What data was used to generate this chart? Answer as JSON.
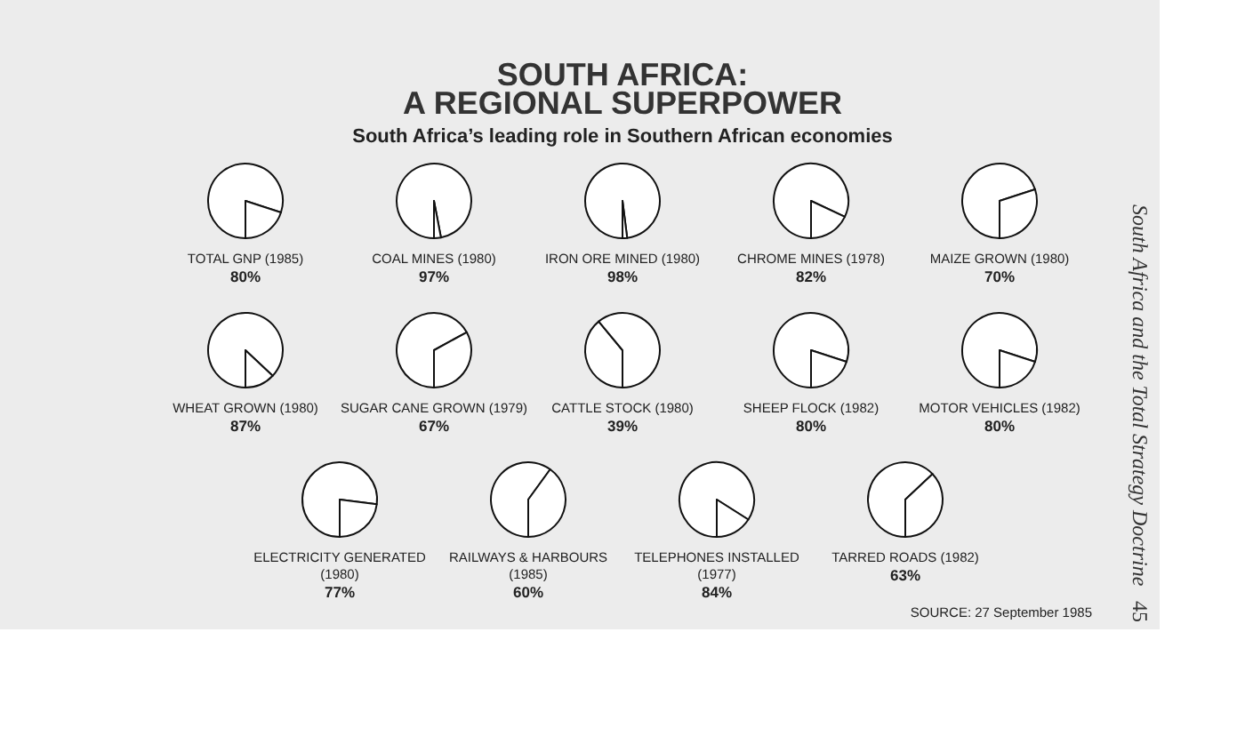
{
  "chart_data": [
    {
      "type": "other",
      "title": "SOUTH AFRICA:\nA REGIONAL SUPERPOWER",
      "subtitle": "South Africa’s leading role in Southern African economies"
    },
    {
      "type": "pie",
      "title": "TOTAL GNP (1985)",
      "categories": [
        null,
        null
      ],
      "values": [
        80,
        20
      ],
      "colors": [
        "#ffffff",
        "#ffffff"
      ],
      "value_labels": [
        "80%",
        null
      ]
    },
    {
      "type": "pie",
      "title": "COAL MINES (1980)",
      "categories": [
        null,
        null
      ],
      "values": [
        97,
        3
      ],
      "colors": [
        "#ffffff",
        "#ffffff"
      ],
      "value_labels": [
        "97%",
        null
      ]
    },
    {
      "type": "pie",
      "title": "IRON ORE MINED (1980)",
      "categories": [
        null,
        null
      ],
      "values": [
        98,
        2
      ],
      "colors": [
        "#ffffff",
        "#ffffff"
      ],
      "value_labels": [
        "98%",
        null
      ]
    },
    {
      "type": "pie",
      "title": "CHROME MINES (1978)",
      "categories": [
        null,
        null
      ],
      "values": [
        82,
        18
      ],
      "colors": [
        "#ffffff",
        "#ffffff"
      ],
      "value_labels": [
        "82%",
        null
      ]
    },
    {
      "type": "pie",
      "title": "MAIZE GROWN (1980)",
      "categories": [
        null,
        null
      ],
      "values": [
        70,
        30
      ],
      "colors": [
        "#ffffff",
        "#ffffff"
      ],
      "value_labels": [
        "70%",
        null
      ]
    },
    {
      "type": "pie",
      "title": "WHEAT GROWN (1980)",
      "categories": [
        null,
        null
      ],
      "values": [
        87,
        13
      ],
      "colors": [
        "#ffffff",
        "#ffffff"
      ],
      "value_labels": [
        "87%",
        null
      ]
    },
    {
      "type": "pie",
      "title": "SUGAR CANE GROWN (1979)",
      "categories": [
        null,
        null
      ],
      "values": [
        67,
        33
      ],
      "colors": [
        "#ffffff",
        "#ffffff"
      ],
      "value_labels": [
        "67%",
        null
      ]
    },
    {
      "type": "pie",
      "title": "CATTLE STOCK (1980)",
      "categories": [
        null,
        null
      ],
      "values": [
        39,
        61
      ],
      "colors": [
        "#ffffff",
        "#ffffff"
      ],
      "value_labels": [
        "39%",
        null
      ]
    },
    {
      "type": "pie",
      "title": "SHEEP FLOCK (1982)",
      "categories": [
        null,
        null
      ],
      "values": [
        80,
        20
      ],
      "colors": [
        "#ffffff",
        "#ffffff"
      ],
      "value_labels": [
        "80%",
        null
      ]
    },
    {
      "type": "pie",
      "title": "MOTOR VEHICLES (1982)",
      "categories": [
        null,
        null
      ],
      "values": [
        80,
        20
      ],
      "colors": [
        "#ffffff",
        "#ffffff"
      ],
      "value_labels": [
        "80%",
        null
      ]
    },
    {
      "type": "pie",
      "title": "ELECTRICITY GENERATED\n(1980)",
      "categories": [
        null,
        null
      ],
      "values": [
        77,
        23
      ],
      "colors": [
        "#ffffff",
        "#ffffff"
      ],
      "value_labels": [
        "77%",
        null
      ]
    },
    {
      "type": "pie",
      "title": "RAILWAYS & HARBOURS\n(1985)",
      "categories": [
        null,
        null
      ],
      "values": [
        60,
        40
      ],
      "colors": [
        "#ffffff",
        "#ffffff"
      ],
      "value_labels": [
        "60%",
        null
      ]
    },
    {
      "type": "pie",
      "title": "TELEPHONES INSTALLED\n(1977)",
      "categories": [
        null,
        null
      ],
      "values": [
        84,
        16
      ],
      "colors": [
        "#ffffff",
        "#ffffff"
      ],
      "value_labels": [
        "84%",
        null
      ]
    },
    {
      "type": "pie",
      "title": "TARRED ROADS (1982)",
      "categories": [
        null,
        null
      ],
      "values": [
        63,
        37
      ],
      "colors": [
        "#ffffff",
        "#ffffff"
      ],
      "value_labels": [
        "63%",
        null
      ]
    },
    {
      "type": "other",
      "annotations": [
        "SOURCE: 27 September 1985"
      ]
    },
    {
      "type": "other",
      "annotations": [
        "South Africa and the Total Strategy Doctrine",
        "45"
      ]
    }
  ]
}
